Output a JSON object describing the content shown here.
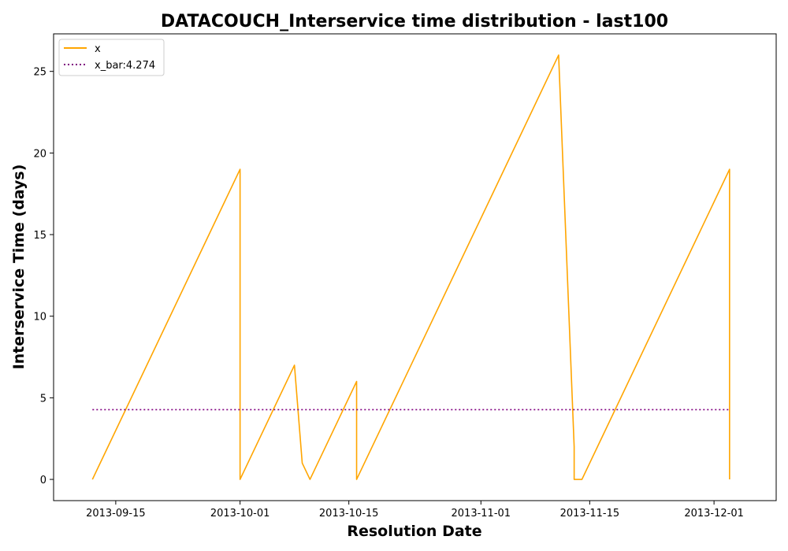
{
  "chart_data": {
    "type": "line",
    "title": "DATACOUCH_Interservice time distribution - last100",
    "xlabel": "Resolution Date",
    "ylabel": "Interservice Time (days)",
    "x_type": "date",
    "xlim": [
      "2013-09-07",
      "2013-12-09"
    ],
    "ylim": [
      -1.3,
      27.3
    ],
    "x_ticks": [
      "2013-09-15",
      "2013-10-01",
      "2013-10-15",
      "2013-11-01",
      "2013-11-15",
      "2013-12-01"
    ],
    "y_ticks": [
      0,
      5,
      10,
      15,
      20,
      25
    ],
    "grid": false,
    "legend_position": "top-left",
    "series": [
      {
        "name": "x",
        "color": "#FFA500",
        "style": "solid",
        "x": [
          "2013-09-12",
          "2013-10-01",
          "2013-10-01",
          "2013-10-08",
          "2013-10-09",
          "2013-10-10",
          "2013-10-10",
          "2013-10-16",
          "2013-10-16",
          "2013-11-11",
          "2013-11-13",
          "2013-11-13",
          "2013-11-14",
          "2013-12-03",
          "2013-12-03"
        ],
        "values": [
          0,
          19,
          0,
          7,
          1,
          0,
          0,
          6,
          0,
          26,
          2,
          0,
          0,
          19,
          0
        ]
      },
      {
        "name": "x_bar:4.274",
        "color": "#800080",
        "style": "dotted",
        "x": [
          "2013-09-12",
          "2013-12-03"
        ],
        "values": [
          4.274,
          4.274
        ]
      }
    ]
  }
}
